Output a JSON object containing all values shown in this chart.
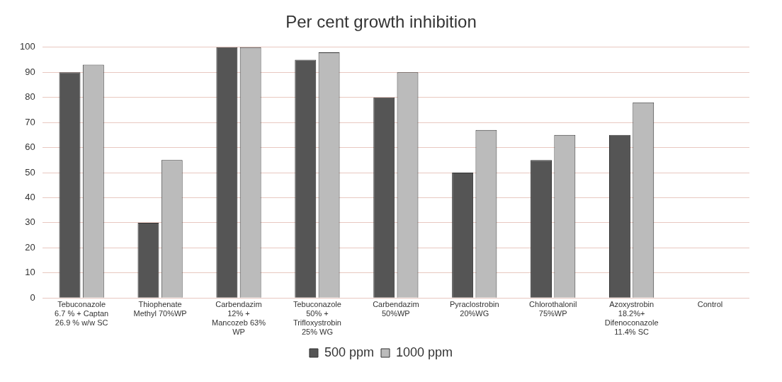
{
  "chart_data": {
    "type": "bar",
    "title": "Per cent growth inhibition",
    "categories": [
      "Tebuconazole\n6.7 % + Captan\n26.9 % w/w SC",
      "Thiophenate\nMethyl 70%WP",
      "Carbendazim\n12% +\nMancozeb 63%\nWP",
      "Tebuconazole\n50% +\nTrifloxystrobin\n25% WG",
      "Carbendazim\n50%WP",
      "Pyraclostrobin\n20%WG",
      "Chlorothalonil\n75%WP",
      "Azoxystrobin\n18.2%+\nDifenoconazole\n11.4% SC",
      "Control"
    ],
    "series": [
      {
        "name": "500 ppm",
        "color": "#555555",
        "values": [
          90,
          30,
          100,
          95,
          80,
          50,
          55,
          65,
          0
        ]
      },
      {
        "name": "1000 ppm",
        "color": "#bbbbbb",
        "values": [
          93,
          55,
          100,
          98,
          90,
          67,
          65,
          78,
          0
        ]
      }
    ],
    "ylim": [
      0,
      100
    ],
    "yticks": [
      0,
      10,
      20,
      30,
      40,
      50,
      60,
      70,
      80,
      90,
      100
    ],
    "grid": "y",
    "legend": "bottom"
  }
}
